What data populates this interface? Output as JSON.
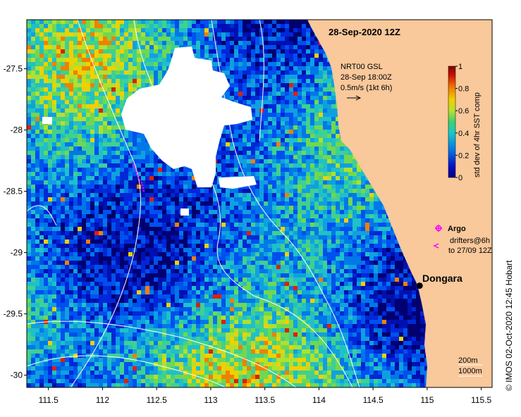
{
  "map": {
    "title": "28-Sep-2020 12Z",
    "credit": "©  IMOS 02-Oct-2020 12:45 Hobart",
    "x_ticks": [
      "111.5",
      "112",
      "112.5",
      "113",
      "113.5",
      "114",
      "114.5",
      "115",
      "115.5"
    ],
    "x_tick_values": [
      111.5,
      112,
      112.5,
      113,
      113.5,
      114,
      114.5,
      115,
      115.5
    ],
    "y_ticks": [
      "-27.5",
      "-28",
      "-28.5",
      "-29",
      "-29.5",
      "-30"
    ],
    "y_tick_values": [
      -27.5,
      -28,
      -28.5,
      -29,
      -29.5,
      -30
    ],
    "lon_range": [
      111.3,
      115.6
    ],
    "lat_range": [
      -30.1,
      -27.1
    ],
    "current_annotation": {
      "line1": "NRT00 GSL",
      "line2": "28-Sep 18:00Z",
      "line3": "0.5m/s (1kt 6h)"
    },
    "colorbar": {
      "label": "std dev of 4hr SST comp",
      "ticks": [
        "1",
        "0.8",
        "0.6",
        "0.4",
        "0.2",
        "0"
      ],
      "tick_values": [
        1,
        0.8,
        0.6,
        0.4,
        0.2,
        0
      ]
    },
    "legend": {
      "argo_label": "Argo",
      "drifters_line1": "drifters@6h",
      "drifters_line2": "to 27/09 12Z"
    },
    "place": {
      "name": "Dongara",
      "lon": 114.93,
      "lat": -29.27
    },
    "depth_contours": {
      "line1": "200m",
      "line2": "1000m"
    },
    "colors": {
      "land": "#f9c89b",
      "cloud": "#ffffff",
      "contour": "#ffffff",
      "argo_marker": "#ff00ff",
      "drifter_track": "#ff00ff"
    }
  }
}
